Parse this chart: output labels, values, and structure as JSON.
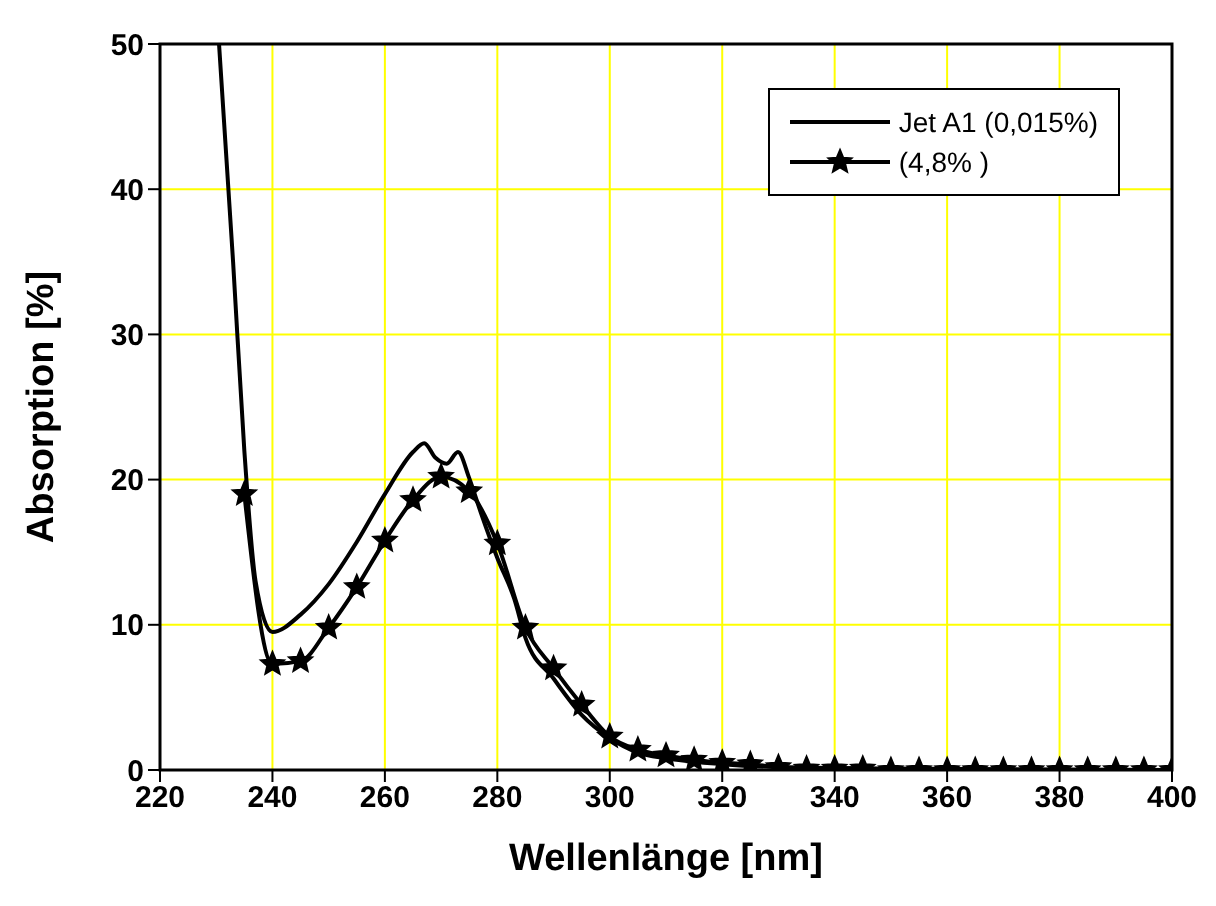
{
  "chart_data": {
    "type": "line",
    "xlabel": "Wellenlänge [nm]",
    "ylabel": "Absorption [%]",
    "xlim": [
      220,
      400
    ],
    "xticks": [
      220,
      240,
      260,
      280,
      300,
      320,
      340,
      360,
      380,
      400
    ],
    "ylim": [
      0,
      50
    ],
    "yticks": [
      0,
      10,
      20,
      30,
      40,
      50
    ],
    "grid": true,
    "legend": "top right",
    "line_style": "solid",
    "series": [
      {
        "name": "Jet A1 (0,015%)",
        "color": "#000000",
        "marker": "none",
        "x": [
          230.5,
          233,
          235,
          237,
          240,
          245,
          250,
          255,
          260,
          265,
          267,
          269,
          271,
          273,
          275,
          277,
          280,
          283,
          285,
          290,
          295,
          300,
          305,
          310,
          320,
          330,
          350,
          400
        ],
        "values": [
          50,
          35,
          22,
          13,
          9.5,
          10.7,
          12.8,
          15.7,
          19,
          21.9,
          22.5,
          21.5,
          21.1,
          21.9,
          20.1,
          17.8,
          14.6,
          11.8,
          9.1,
          6.3,
          3.8,
          2.2,
          1.2,
          0.8,
          0.4,
          0.2,
          0.1,
          0
        ]
      },
      {
        "name": "(4,8% )",
        "color": "#000000",
        "marker": "star",
        "x": [
          235,
          240,
          245,
          250,
          255,
          260,
          265,
          270,
          275,
          280,
          285,
          290,
          295,
          300,
          305,
          310,
          315,
          320,
          325,
          330,
          335,
          340,
          345,
          350,
          355,
          360,
          365,
          370,
          375,
          380,
          385,
          390,
          395,
          400
        ],
        "values": [
          19,
          7.3,
          7.5,
          9.8,
          12.6,
          15.8,
          18.6,
          20.2,
          19.2,
          15.6,
          9.8,
          7,
          4.5,
          2.3,
          1.4,
          1,
          0.7,
          0.5,
          0.4,
          0.2,
          0.1,
          0.1,
          0.1,
          0,
          0,
          0,
          0,
          0,
          0,
          0,
          0,
          0,
          0,
          0
        ]
      }
    ]
  }
}
